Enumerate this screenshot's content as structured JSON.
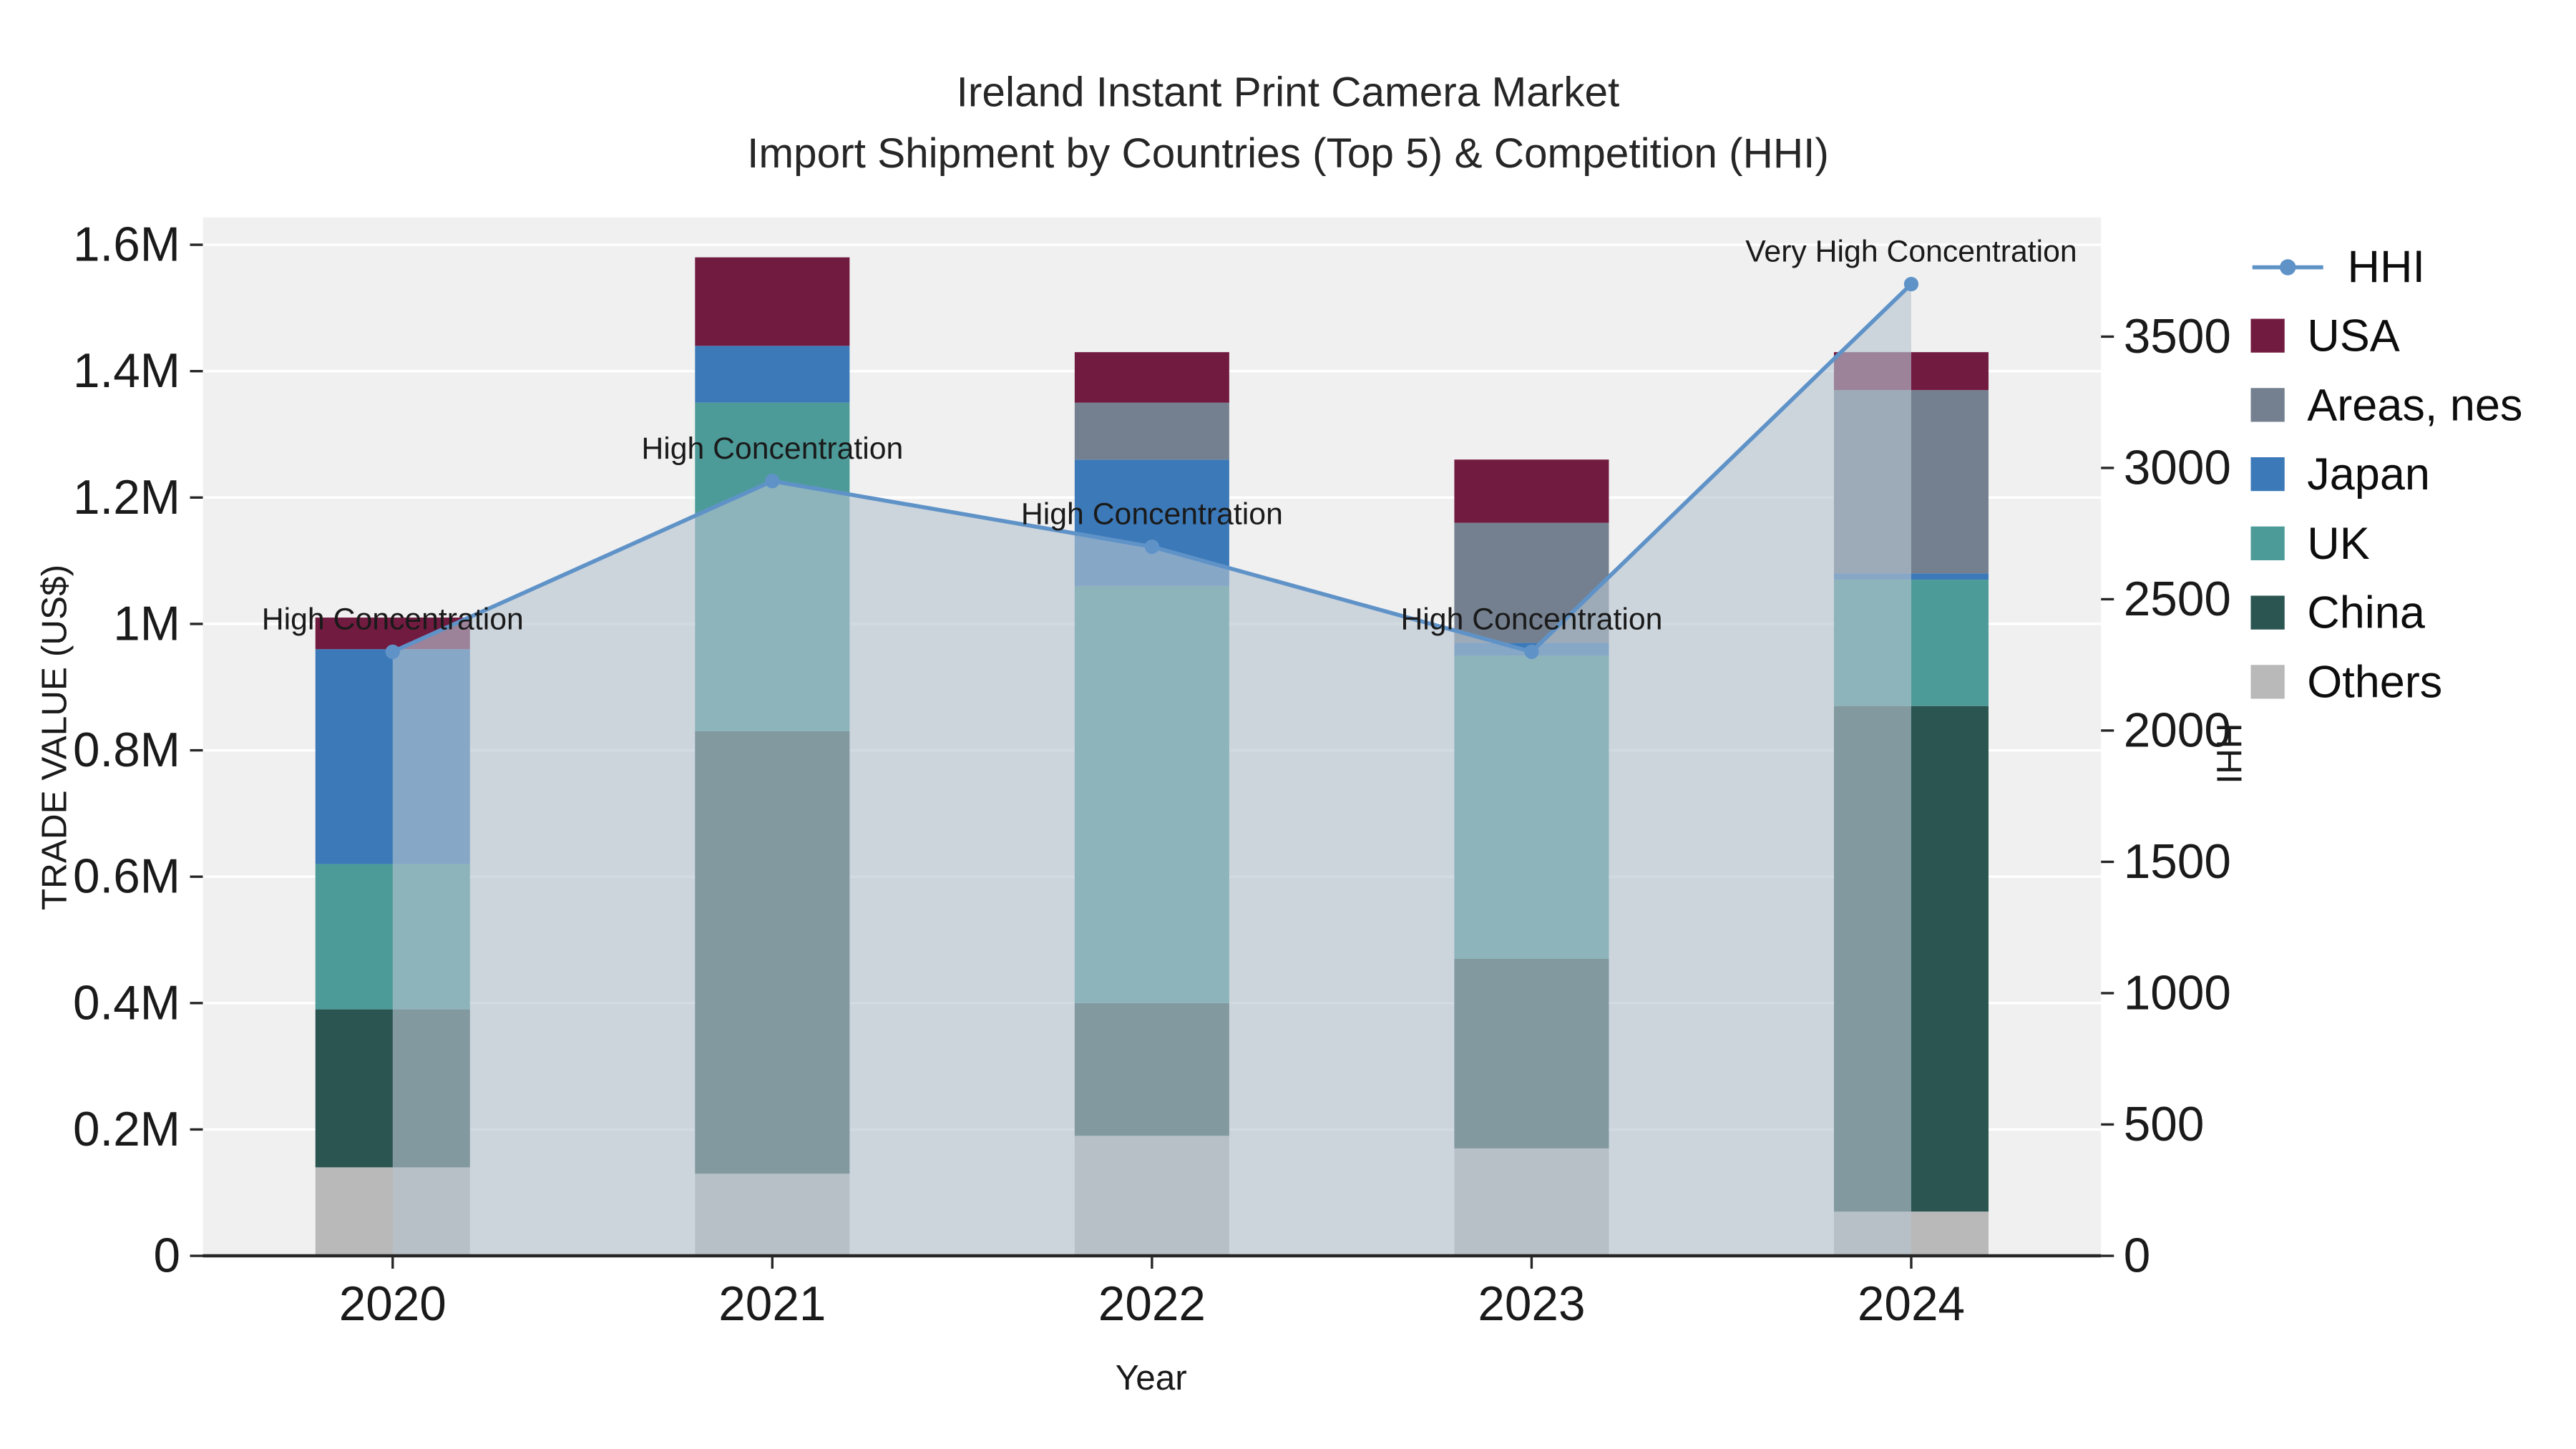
{
  "chart_data": {
    "type": "bar",
    "title": "Ireland Instant Print Camera Market",
    "subtitle": "Import Shipment by Countries (Top 5) & Competition (HHI)",
    "xlabel": "Year",
    "ylabel_left": "TRADE VALUE (US$)",
    "ylabel_right": "HHI",
    "categories": [
      "2020",
      "2021",
      "2022",
      "2023",
      "2024"
    ],
    "value_unit": "M US$",
    "stack_order": [
      "Others",
      "China",
      "UK",
      "Japan",
      "Areas, nes",
      "USA"
    ],
    "series": [
      {
        "name": "USA",
        "color": "#721b40",
        "values": [
          0.05,
          0.14,
          0.08,
          0.1,
          0.06
        ]
      },
      {
        "name": "Areas, nes",
        "color": "#74808f",
        "values": [
          0.0,
          0.0,
          0.09,
          0.19,
          0.29
        ]
      },
      {
        "name": "Japan",
        "color": "#3c79b8",
        "values": [
          0.34,
          0.09,
          0.2,
          0.02,
          0.01
        ]
      },
      {
        "name": "UK",
        "color": "#4d9b99",
        "values": [
          0.23,
          0.52,
          0.66,
          0.48,
          0.2
        ]
      },
      {
        "name": "China",
        "color": "#2a5550",
        "values": [
          0.25,
          0.7,
          0.21,
          0.3,
          0.8
        ]
      },
      {
        "name": "Others",
        "color": "#b9b9b9",
        "values": [
          0.14,
          0.13,
          0.19,
          0.17,
          0.07
        ]
      }
    ],
    "line": {
      "name": "HHI",
      "color": "#5f93c8",
      "area_fill": "#b7c3d1",
      "area_opacity": 0.62,
      "values": [
        2300,
        2950,
        2700,
        2300,
        3700
      ],
      "annotations": [
        "High Concentration",
        "High Concentration",
        "High Concentration",
        "High Concentration",
        "Very High Concentration"
      ]
    },
    "y_left": {
      "max": 1.6,
      "tick_values": [
        0,
        0.2,
        0.4,
        0.6,
        0.8,
        1.0,
        1.2,
        1.4,
        1.6
      ],
      "tick_labels": [
        "0",
        "0.2M",
        "0.4M",
        "0.6M",
        "0.8M",
        "1M",
        "1.2M",
        "1.4M",
        "1.6M"
      ]
    },
    "y_right": {
      "max_at_plot_top": 3850,
      "tick_values": [
        0,
        500,
        1000,
        1500,
        2000,
        2500,
        3000,
        3500
      ],
      "tick_labels": [
        "0",
        "500",
        "1000",
        "1500",
        "2000",
        "2500",
        "3000",
        "3500"
      ]
    },
    "legend": [
      {
        "label": "HHI",
        "type": "line"
      },
      {
        "label": "USA",
        "type": "square"
      },
      {
        "label": "Areas, nes",
        "type": "square"
      },
      {
        "label": "Japan",
        "type": "square"
      },
      {
        "label": "UK",
        "type": "square"
      },
      {
        "label": "China",
        "type": "square"
      },
      {
        "label": "Others",
        "type": "square"
      }
    ],
    "colors": {
      "plot_bg": "#f0f0f0",
      "grid": "#ffffff",
      "axis": "#262626",
      "text": "#1a1a1a"
    }
  }
}
